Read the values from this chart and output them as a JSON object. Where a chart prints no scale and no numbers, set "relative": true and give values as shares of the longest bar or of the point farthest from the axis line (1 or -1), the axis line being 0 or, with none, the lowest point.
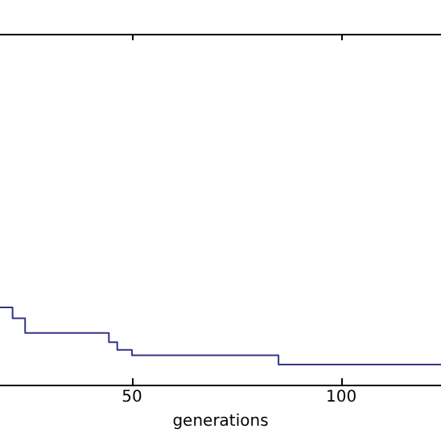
{
  "chart_data": {
    "type": "step",
    "xlabel": "generations",
    "relative": true,
    "x": [
      18.5,
      21.5,
      24.5,
      44.5,
      46.5,
      50,
      85,
      123.8
    ],
    "values": [
      1,
      0.86,
      0.67,
      0.55,
      0.45,
      0.38,
      0.26,
      0.26
    ],
    "color": "#34348a",
    "xlim": [
      18.5,
      123.8
    ],
    "xticks": [
      50,
      100
    ],
    "grid": false,
    "legend": false
  }
}
